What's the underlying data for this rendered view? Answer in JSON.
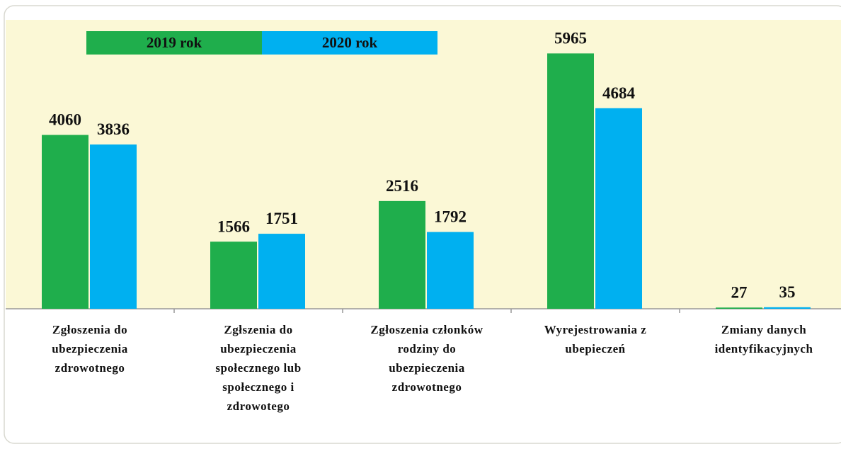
{
  "chart_data": {
    "type": "bar",
    "categories": [
      "Zgłoszenia do ubezpieczenia zdrowotnego",
      "Zgłszenia do ubezpieczenia społecznego lub społecznego i zdrowotego",
      "Zgłoszenia członków rodziny do ubezpieczenia zdrowotnego",
      "Wyrejestrowania z ubepieczeń",
      "Zmiany danych identyfikacyjnych"
    ],
    "series": [
      {
        "name": "2019 rok",
        "color": "#1fae4c",
        "values": [
          4060,
          1566,
          2516,
          5965,
          27
        ]
      },
      {
        "name": "2020 rok",
        "color": "#00b0f0",
        "values": [
          3836,
          1751,
          1792,
          4684,
          35
        ]
      }
    ],
    "ylim": [
      0,
      6750
    ]
  }
}
